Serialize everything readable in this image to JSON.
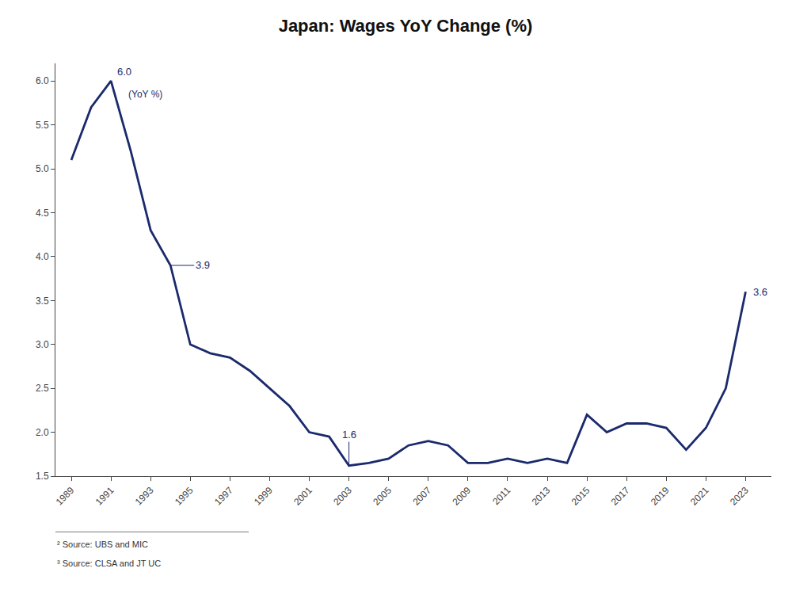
{
  "chart_data": {
    "type": "line",
    "title": "Japan: Wages YoY Change (%)",
    "color": "#1a2a6c",
    "x": [
      1989,
      1990,
      1991,
      1992,
      1993,
      1994,
      1995,
      1996,
      1997,
      1998,
      1999,
      2000,
      2001,
      2002,
      2003,
      2004,
      2005,
      2006,
      2007,
      2008,
      2009,
      2010,
      2011,
      2012,
      2013,
      2014,
      2015,
      2016,
      2017,
      2018,
      2019,
      2020,
      2021,
      2022,
      2023
    ],
    "values": [
      5.1,
      5.7,
      6.0,
      5.2,
      4.3,
      3.9,
      3.0,
      2.9,
      2.85,
      2.7,
      2.5,
      2.3,
      2.0,
      1.95,
      1.62,
      1.65,
      1.7,
      1.85,
      1.9,
      1.85,
      1.65,
      1.65,
      1.7,
      1.65,
      1.7,
      1.65,
      2.2,
      2.0,
      2.1,
      2.1,
      2.05,
      1.8,
      2.05,
      2.5,
      3.6
    ],
    "xlim": [
      1988.2,
      2024.3
    ],
    "xticks": [
      1989,
      1991,
      1993,
      1995,
      1997,
      1999,
      2001,
      2003,
      2005,
      2007,
      2009,
      2011,
      2013,
      2015,
      2017,
      2019,
      2021,
      2023
    ],
    "ylim": [
      1.5,
      6.2
    ],
    "yticks": [
      1.5,
      {
        "value": 2.0,
        "label": "2.0"
      },
      2.5,
      {
        "value": 3.0,
        "label": "3.0"
      },
      3.5,
      {
        "value": 4.0,
        "label": "4.0"
      },
      4.5,
      {
        "value": 5.0,
        "label": "5.0"
      },
      5.5,
      {
        "value": 6.0,
        "label": "6.0"
      }
    ],
    "grid": false,
    "annotations": [
      {
        "text": "6.0",
        "x": 1991,
        "y": 6.0
      },
      {
        "text": "(YoY %)",
        "x": 1991,
        "y": 6.0
      },
      {
        "text": "3.9",
        "x": 1994,
        "y": 3.9
      },
      {
        "text": "1.6",
        "x": 2003,
        "y": 1.62
      },
      {
        "text": "3.6",
        "x": 2023,
        "y": 3.6
      }
    ],
    "footnotes": [
      "² Source: UBS and MIC",
      "³ Source: CLSA and JT UC"
    ]
  }
}
